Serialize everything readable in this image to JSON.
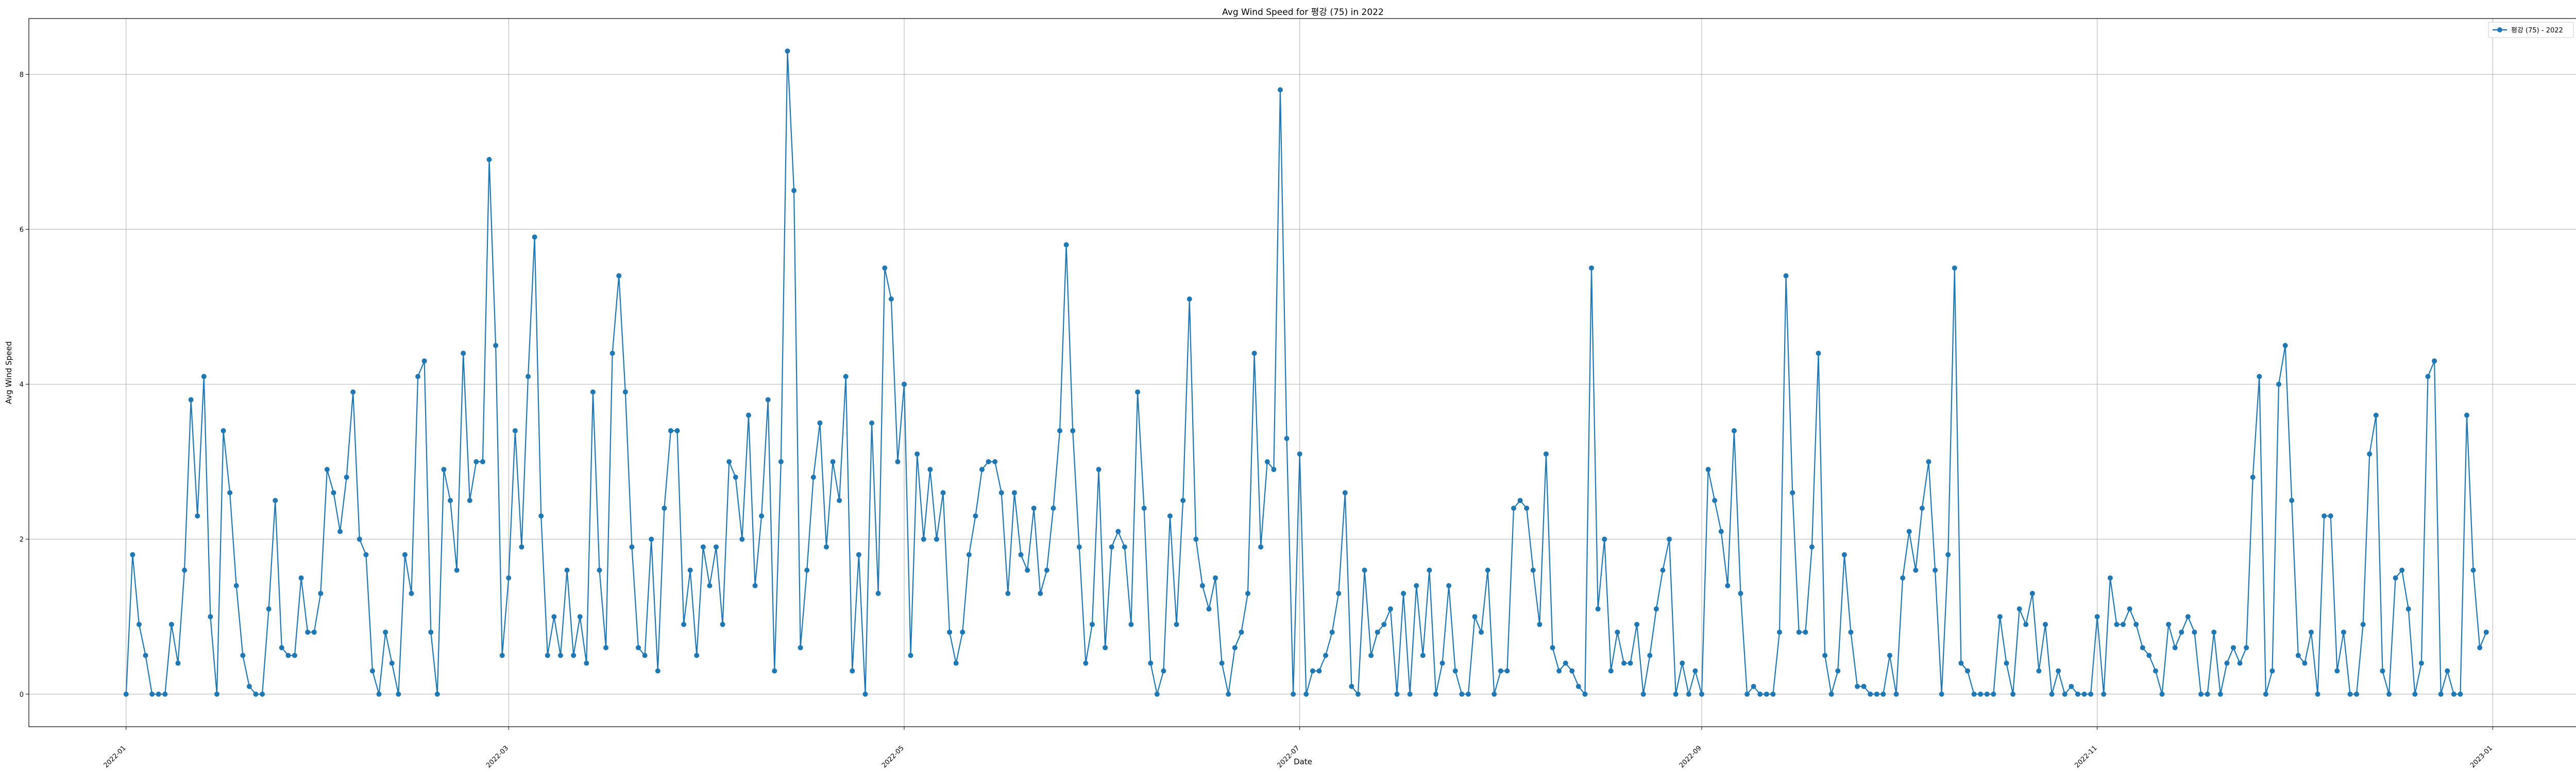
{
  "chart_data": {
    "type": "line",
    "title": "Avg Wind Speed for 평강 (75) in 2022",
    "xlabel": "Date",
    "ylabel": "Avg Wind Speed",
    "legend_position": "top-right",
    "grid": true,
    "series_color": "#1f77b4",
    "xlim": [
      "2021-12-17",
      "2023-01-14"
    ],
    "ylim": [
      -0.42,
      8.72
    ],
    "y_ticks": [
      0,
      2,
      4,
      6,
      8
    ],
    "y_tick_labels": [
      "0",
      "2",
      "4",
      "6",
      "8"
    ],
    "x_ticks": [
      "2022-01-01",
      "2022-03-01",
      "2022-05-01",
      "2022-07-01",
      "2022-09-01",
      "2022-11-01",
      "2023-01-01"
    ],
    "x_tick_labels": [
      "2022-01",
      "2022-03",
      "2022-05",
      "2022-07",
      "2022-09",
      "2022-11",
      "2023-01"
    ],
    "start_date": "2022-01-01",
    "series": [
      {
        "name": "평강 (75) - 2022",
        "values": [
          0,
          1.8,
          0.9,
          0.5,
          0,
          0,
          0,
          0.9,
          0.4,
          1.6,
          3.8,
          2.3,
          4.1,
          1.0,
          0,
          3.4,
          2.6,
          1.4,
          0.5,
          0.1,
          0,
          0,
          1.1,
          2.5,
          0.6,
          0.5,
          0.5,
          1.5,
          0.8,
          0.8,
          1.3,
          2.9,
          2.6,
          2.1,
          2.8,
          3.9,
          2.0,
          1.8,
          0.3,
          0,
          0.8,
          0.4,
          0,
          1.8,
          1.3,
          4.1,
          4.3,
          0.8,
          0,
          2.9,
          2.5,
          1.6,
          4.4,
          2.5,
          3.0,
          3.0,
          6.9,
          4.5,
          0.5,
          1.5,
          3.4,
          1.9,
          4.1,
          5.9,
          2.3,
          0.5,
          1.0,
          0.5,
          1.6,
          0.5,
          1.0,
          0.4,
          3.9,
          1.6,
          0.6,
          4.4,
          5.4,
          3.9,
          1.9,
          0.6,
          0.5,
          2.0,
          0.3,
          2.4,
          3.4,
          3.4,
          0.9,
          1.6,
          0.5,
          1.9,
          1.4,
          1.9,
          0.9,
          3.0,
          2.8,
          2.0,
          3.6,
          1.4,
          2.3,
          3.8,
          0.3,
          3.0,
          8.3,
          6.5,
          0.6,
          1.6,
          2.8,
          3.5,
          1.9,
          3.0,
          2.5,
          4.1,
          0.3,
          1.8,
          0,
          3.5,
          1.3,
          5.5,
          5.1,
          3.0,
          4.0,
          0.5,
          3.1,
          2.0,
          2.9,
          2.0,
          2.6,
          0.8,
          0.4,
          0.8,
          1.8,
          2.3,
          2.9,
          3.0,
          3.0,
          2.6,
          1.3,
          2.6,
          1.8,
          1.6,
          2.4,
          1.3,
          1.6,
          2.4,
          3.4,
          5.8,
          3.4,
          1.9,
          0.4,
          0.9,
          2.9,
          0.6,
          1.9,
          2.1,
          1.9,
          0.9,
          3.9,
          2.4,
          0.4,
          0,
          0.3,
          2.3,
          0.9,
          2.5,
          5.1,
          2.0,
          1.4,
          1.1,
          1.5,
          0.4,
          0,
          0.6,
          0.8,
          1.3,
          4.4,
          1.9,
          3.0,
          2.9,
          7.8,
          3.3,
          0,
          3.1,
          0,
          0.3,
          0.3,
          0.5,
          0.8,
          1.3,
          2.6,
          0.1,
          0,
          1.6,
          0.5,
          0.8,
          0.9,
          1.1,
          0,
          1.3,
          0,
          1.4,
          0.5,
          1.6,
          0,
          0.4,
          1.4,
          0.3,
          0,
          0,
          1.0,
          0.8,
          1.6,
          0,
          0.3,
          0.3,
          2.4,
          2.5,
          2.4,
          1.6,
          0.9,
          3.1,
          0.6,
          0.3,
          0.4,
          0.3,
          0.1,
          0,
          5.5,
          1.1,
          2.0,
          0.3,
          0.8,
          0.4,
          0.4,
          0.9,
          0,
          0.5,
          1.1,
          1.6,
          2.0,
          0,
          0.4,
          0,
          0.3,
          0,
          2.9,
          2.5,
          2.1,
          1.4,
          3.4,
          1.3,
          0,
          0.1,
          0,
          0,
          0,
          0.8,
          5.4,
          2.6,
          0.8,
          0.8,
          1.9,
          4.4,
          0.5,
          0,
          0.3,
          1.8,
          0.8,
          0.1,
          0.1,
          0,
          0,
          0,
          0.5,
          0,
          1.5,
          2.1,
          1.6,
          2.4,
          3.0,
          1.6,
          0,
          1.8,
          5.5,
          0.4,
          0.3,
          0,
          0,
          0,
          0,
          1.0,
          0.4,
          0,
          1.1,
          0.9,
          1.3,
          0.3,
          0.9,
          0,
          0.3,
          0,
          0.1,
          0,
          0,
          0,
          1.0,
          0,
          1.5,
          0.9,
          0.9,
          1.1,
          0.9,
          0.6,
          0.5,
          0.3,
          0,
          0.9,
          0.6,
          0.8,
          1.0,
          0.8,
          0,
          0,
          0.8,
          0,
          0.4,
          0.6,
          0.4,
          0.6,
          2.8,
          4.1,
          0,
          0.3,
          4.0,
          4.5,
          2.5,
          0.5,
          0.4,
          0.8,
          0,
          2.3,
          2.3,
          0.3,
          0.8,
          0,
          0,
          0.9,
          3.1,
          3.6,
          0.3,
          0,
          1.5,
          1.6,
          1.1,
          0,
          0.4,
          4.1,
          4.3,
          0,
          0.3,
          0,
          0,
          3.6,
          1.6,
          0.6,
          0.8
        ]
      }
    ]
  }
}
